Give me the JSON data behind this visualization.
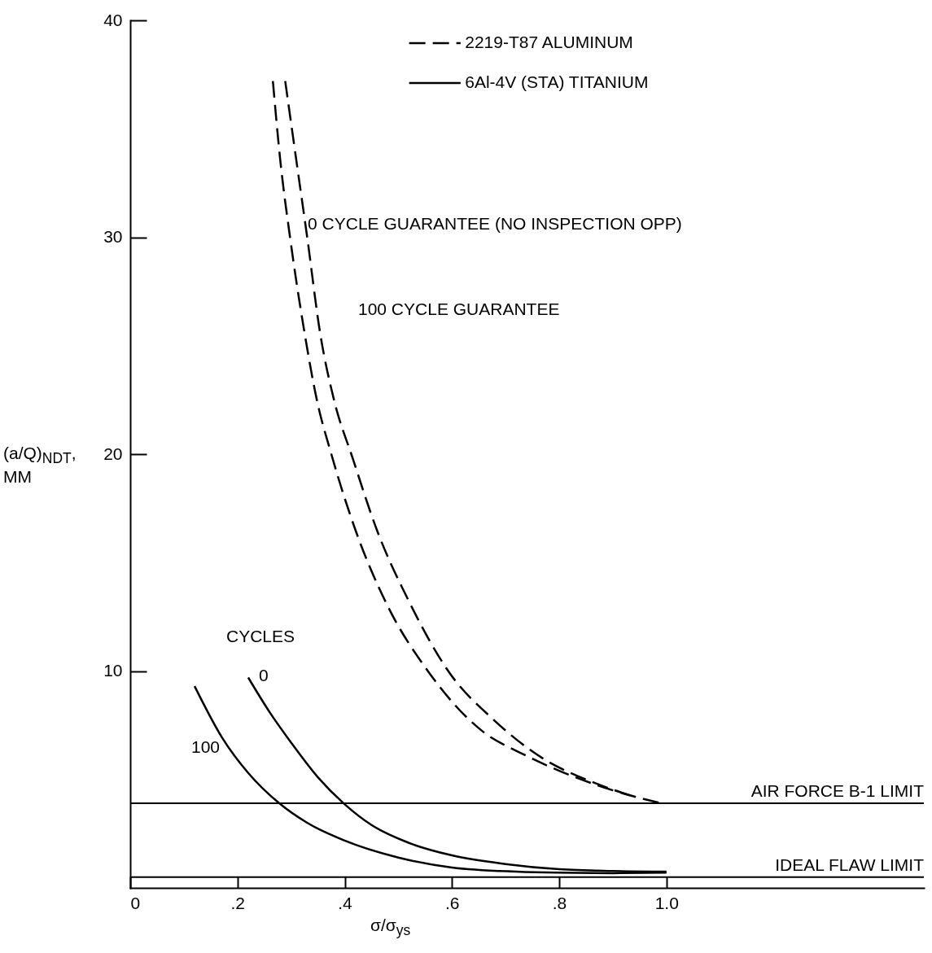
{
  "chart_data": {
    "type": "line",
    "xlabel": "σ/σ$_{ys}$",
    "ylabel": "(a/Q)$_{NDT}$, MM",
    "xlim": [
      0,
      1.48
    ],
    "ylim": [
      0,
      40
    ],
    "xticks": [
      0,
      {
        "value": 0.2,
        "label": ".2"
      },
      {
        "value": 0.4,
        "label": ".4"
      },
      {
        "value": 0.6,
        "label": ".6"
      },
      {
        "value": 0.8,
        "label": ".8"
      },
      {
        "value": 1.0,
        "label": "1.0"
      }
    ],
    "yticks": [
      10,
      20,
      30,
      40
    ],
    "grid": false,
    "legend": "top",
    "marker": "none",
    "series": [
      {
        "name": "2219-T87 ALUMINUM",
        "color": "#000000",
        "line_style": "dashed",
        "x": [
          0.289,
          0.31,
          0.33,
          0.354,
          0.38,
          0.415,
          0.46,
          0.52,
          0.593,
          0.68,
          0.77,
          0.86,
          0.94
        ],
        "values": [
          37.2,
          33.5,
          30,
          25.6,
          22.5,
          19.8,
          16.5,
          13.2,
          10,
          7.7,
          5.96,
          4.9,
          4.2
        ]
      },
      {
        "color": "#000000",
        "line_style": "dashed",
        "x": [
          0.266,
          0.28,
          0.298,
          0.325,
          0.348,
          0.375,
          0.42,
          0.48,
          0.555,
          0.658,
          0.73,
          0.8,
          0.9,
          0.99
        ],
        "values": [
          37.2,
          33.5,
          30,
          25.6,
          22.5,
          20,
          16.5,
          13,
          10,
          7.2,
          6.2,
          5.4,
          4.5,
          3.9
        ]
      },
      {
        "name": "6Al-4V (STA) TITANIUM",
        "color": "#000000",
        "line_style": "solid",
        "x": [
          0.22,
          0.26,
          0.3,
          0.35,
          0.398,
          0.45,
          0.517,
          0.6,
          0.7,
          0.8,
          0.9,
          1.0
        ],
        "values": [
          9.7,
          8.1,
          6.7,
          5.1,
          3.9,
          2.9,
          2.1,
          1.5,
          1.1,
          0.86,
          0.78,
          0.75
        ]
      },
      {
        "color": "#000000",
        "line_style": "solid",
        "x": [
          0.12,
          0.172,
          0.22,
          0.278,
          0.33,
          0.398,
          0.5,
          0.6,
          0.72,
          0.8,
          0.9,
          1.0
        ],
        "values": [
          9.3,
          6.9,
          5.3,
          3.9,
          3.0,
          2.2,
          1.4,
          0.94,
          0.75,
          0.7,
          0.68,
          0.7
        ]
      }
    ],
    "ref_lines": [
      {
        "axis": "y",
        "value": 3.9,
        "label": "AIR FORCE B-1 LIMIT"
      },
      {
        "axis": "y",
        "value": 0.5,
        "label": "IDEAL FLAW LIMIT"
      }
    ],
    "annotations": [
      {
        "text": "0 CYCLE GUARANTEE (NO INSPECTION OPP)",
        "x": 0.331,
        "y": 30.6
      },
      "100 CYCLE GUARANTEE",
      "CYCLES",
      "0",
      "100"
    ]
  }
}
